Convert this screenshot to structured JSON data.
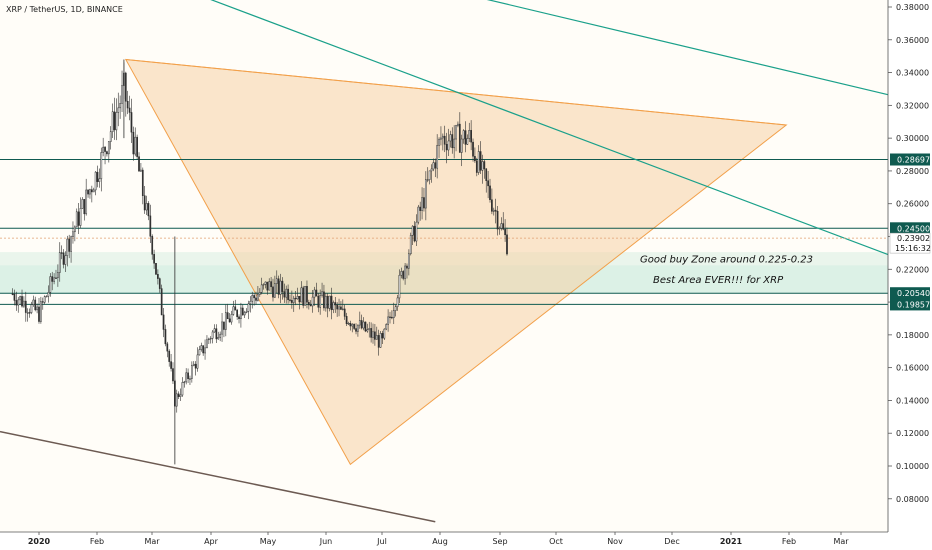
{
  "title": "XRP / TetherUS, 1D, BINANCE",
  "colors": {
    "candle": "#2f2f2f",
    "triangle_fill": "#f6d2a6",
    "triangle_stroke": "#f2a04a",
    "teal_line": "#1aa08a",
    "level_line": "#0f5a50",
    "zone_fill": "#d8efe3",
    "zone_fill2": "#e8f4ea",
    "brown_line": "#6c5a52",
    "badge_bg": "#0f5a50",
    "grid_bg": "#fffdf8"
  },
  "chart_data": {
    "type": "candlestick",
    "title": "XRP / TetherUS, 1D, BINANCE",
    "x_ticks": [
      "2020",
      "Feb",
      "Mar",
      "Apr",
      "May",
      "Jun",
      "Jul",
      "Aug",
      "Sep",
      "Oct",
      "Nov",
      "Dec",
      "2021",
      "Feb",
      "Mar"
    ],
    "y_ticks": [
      "0.38000",
      "0.36000",
      "0.34000",
      "0.32000",
      "0.30000",
      "0.28000",
      "0.26000",
      "0.24000",
      "0.22000",
      "0.20000",
      "0.18000",
      "0.16000",
      "0.14000",
      "0.12000",
      "0.10000",
      "0.08000"
    ],
    "ylim": [
      0.065,
      0.385
    ],
    "price_levels": [
      {
        "value": 0.28697,
        "label": "0.28697"
      },
      {
        "value": 0.245,
        "label": "0.24500"
      },
      {
        "value": 0.2054,
        "label": "0.20540"
      },
      {
        "value": 0.19857,
        "label": "0.19857"
      }
    ],
    "current_price": {
      "value": 0.23902,
      "label": "0.23902",
      "countdown": "15:16:32"
    },
    "zones": [
      {
        "from": 0.2225,
        "to": 0.2305,
        "label": "Good buy Zone around 0.225-0.23"
      },
      {
        "from": 0.2054,
        "to": 0.2225,
        "label": "Best Area EVER!!! for XRP"
      }
    ],
    "close_series_monthly_anchor": [
      {
        "date": "2020-01-01",
        "close": 0.193
      },
      {
        "date": "2020-02-01",
        "close": 0.28
      },
      {
        "date": "2020-02-15",
        "close": 0.33
      },
      {
        "date": "2020-03-01",
        "close": 0.235
      },
      {
        "date": "2020-03-13",
        "close": 0.14
      },
      {
        "date": "2020-04-01",
        "close": 0.18
      },
      {
        "date": "2020-05-01",
        "close": 0.21
      },
      {
        "date": "2020-06-01",
        "close": 0.2
      },
      {
        "date": "2020-07-01",
        "close": 0.175
      },
      {
        "date": "2020-08-01",
        "close": 0.3
      },
      {
        "date": "2020-08-16",
        "close": 0.3
      },
      {
        "date": "2020-09-05",
        "close": 0.236
      }
    ]
  }
}
